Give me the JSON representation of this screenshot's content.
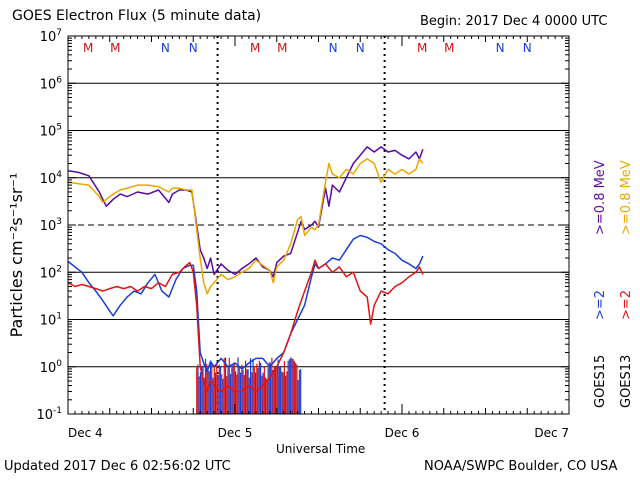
{
  "header": {
    "title": "GOES Electron Flux (5 minute data)",
    "begin": "Begin: 2017 Dec 4 0000 UTC"
  },
  "footer": {
    "updated": "Updated 2017 Dec  6 02:56:02 UTC",
    "credit": "NOAA/SWPC Boulder, CO USA"
  },
  "colors": {
    "goes15_2mev": "#1a3fd6",
    "goes13_2mev": "#e01414",
    "goes15_08mev": "#5a0aa0",
    "goes13_08mev": "#e8a800",
    "marker_m": "#c81414",
    "marker_n": "#1a3fd6"
  },
  "chart_data": {
    "type": "line",
    "ylabel": "Particles cm⁻²s⁻¹sr⁻¹",
    "xlabel": "Universal Time",
    "yscale": "log",
    "ylim": [
      0.1,
      10000000
    ],
    "xlim": [
      0,
      72
    ],
    "x_unit": "hours since 2017 Dec 4 0000 UTC",
    "x_ticks": [
      {
        "x": 0,
        "label": "Dec 4"
      },
      {
        "x": 24,
        "label": "Dec 5"
      },
      {
        "x": 48,
        "label": "Dec 6"
      },
      {
        "x": 72,
        "label": "Dec 7"
      }
    ],
    "y_ticks": [
      {
        "exp": 7,
        "value": 10000000
      },
      {
        "exp": 6,
        "value": 1000000
      },
      {
        "exp": 5,
        "value": 100000
      },
      {
        "exp": 4,
        "value": 10000
      },
      {
        "exp": 3,
        "value": 1000
      },
      {
        "exp": 2,
        "value": 100
      },
      {
        "exp": 1,
        "value": 10
      },
      {
        "exp": 0,
        "value": 1
      },
      {
        "exp": -1,
        "value": 0.1
      }
    ],
    "threshold_line": 1000,
    "local_midnight_lines": [
      21.5,
      45.5
    ],
    "top_markers": [
      {
        "x": 2.9,
        "label": "M",
        "color_key": "marker_m"
      },
      {
        "x": 6.8,
        "label": "M",
        "color_key": "marker_m"
      },
      {
        "x": 14.0,
        "label": "N",
        "color_key": "marker_n"
      },
      {
        "x": 18.0,
        "label": "N",
        "color_key": "marker_n"
      },
      {
        "x": 26.9,
        "label": "M",
        "color_key": "marker_m"
      },
      {
        "x": 30.8,
        "label": "M",
        "color_key": "marker_m"
      },
      {
        "x": 38.1,
        "label": "N",
        "color_key": "marker_n"
      },
      {
        "x": 42.0,
        "label": "N",
        "color_key": "marker_n"
      },
      {
        "x": 50.9,
        "label": "M",
        "color_key": "marker_m"
      },
      {
        "x": 54.8,
        "label": "M",
        "color_key": "marker_m"
      },
      {
        "x": 62.1,
        "label": "N",
        "color_key": "marker_n"
      },
      {
        "x": 66.0,
        "label": "N",
        "color_key": "marker_n"
      }
    ],
    "legend": [
      {
        "text": "GOES15",
        "color": "#000000"
      },
      {
        "text": ">=2",
        "color": "#1a3fd6"
      },
      {
        "text": ">=0.8 MeV",
        "color": "#5a0aa0"
      },
      {
        "text": "GOES13",
        "color": "#000000"
      },
      {
        "text": ">=2",
        "color": "#e01414"
      },
      {
        "text": ">=0.8 MeV",
        "color": "#e8a800"
      }
    ],
    "series": [
      {
        "name": "GOES15 >=0.8 MeV",
        "color_key": "goes15_08mev",
        "points": [
          [
            0,
            14000
          ],
          [
            1.5,
            13000
          ],
          [
            3,
            11000
          ],
          [
            4.5,
            5000
          ],
          [
            5,
            3500
          ],
          [
            5.5,
            2500
          ],
          [
            6.5,
            3500
          ],
          [
            7.5,
            4500
          ],
          [
            8.5,
            4000
          ],
          [
            10,
            5000
          ],
          [
            11.5,
            4500
          ],
          [
            13,
            5500
          ],
          [
            14.5,
            3000
          ],
          [
            15,
            4500
          ],
          [
            16,
            5500
          ],
          [
            17,
            5500
          ],
          [
            17.8,
            5000
          ],
          [
            18.5,
            1000
          ],
          [
            19,
            300
          ],
          [
            19.5,
            200
          ],
          [
            20,
            120
          ],
          [
            20.5,
            200
          ],
          [
            21,
            90
          ],
          [
            22,
            150
          ],
          [
            23,
            110
          ],
          [
            24,
            90
          ],
          [
            25,
            120
          ],
          [
            26,
            150
          ],
          [
            27,
            200
          ],
          [
            28,
            130
          ],
          [
            29,
            110
          ],
          [
            29.5,
            80
          ],
          [
            30,
            160
          ],
          [
            31,
            220
          ],
          [
            32,
            250
          ],
          [
            33,
            700
          ],
          [
            33.5,
            1200
          ],
          [
            34,
            800
          ],
          [
            35,
            1000
          ],
          [
            35.5,
            1200
          ],
          [
            36,
            900
          ],
          [
            37,
            6000
          ],
          [
            37.5,
            2500
          ],
          [
            38,
            7000
          ],
          [
            39,
            5000
          ],
          [
            40,
            10000
          ],
          [
            41,
            20000
          ],
          [
            42,
            30000
          ],
          [
            43,
            45000
          ],
          [
            44,
            35000
          ],
          [
            45,
            45000
          ],
          [
            46,
            35000
          ],
          [
            47,
            38000
          ],
          [
            48,
            30000
          ],
          [
            49,
            25000
          ],
          [
            50,
            35000
          ],
          [
            50.5,
            25000
          ],
          [
            51,
            40000
          ]
        ]
      },
      {
        "name": "GOES13 >=0.8 MeV",
        "color_key": "goes13_08mev",
        "points": [
          [
            0,
            8000
          ],
          [
            1.5,
            7500
          ],
          [
            3,
            7000
          ],
          [
            4.5,
            4000
          ],
          [
            5,
            3000
          ],
          [
            5.5,
            3500
          ],
          [
            6.5,
            4500
          ],
          [
            7.5,
            5500
          ],
          [
            8.5,
            6000
          ],
          [
            10,
            7000
          ],
          [
            11.5,
            7000
          ],
          [
            13,
            6500
          ],
          [
            14.5,
            5000
          ],
          [
            15,
            6000
          ],
          [
            16,
            6000
          ],
          [
            17,
            5500
          ],
          [
            17.8,
            5500
          ],
          [
            18.5,
            800
          ],
          [
            19,
            200
          ],
          [
            19.5,
            60
          ],
          [
            20,
            35
          ],
          [
            20.5,
            50
          ],
          [
            21,
            60
          ],
          [
            22,
            90
          ],
          [
            23,
            70
          ],
          [
            24,
            80
          ],
          [
            25,
            100
          ],
          [
            26,
            120
          ],
          [
            27,
            180
          ],
          [
            28,
            140
          ],
          [
            29,
            110
          ],
          [
            29.5,
            60
          ],
          [
            30,
            130
          ],
          [
            31,
            180
          ],
          [
            32,
            400
          ],
          [
            33,
            1300
          ],
          [
            33.5,
            1500
          ],
          [
            34,
            600
          ],
          [
            35,
            900
          ],
          [
            35.5,
            800
          ],
          [
            36,
            1000
          ],
          [
            37,
            8000
          ],
          [
            37.5,
            20000
          ],
          [
            38,
            12000
          ],
          [
            39,
            10000
          ],
          [
            40,
            15000
          ],
          [
            41,
            12000
          ],
          [
            42,
            20000
          ],
          [
            43,
            25000
          ],
          [
            44,
            20000
          ],
          [
            45,
            8000
          ],
          [
            46,
            15000
          ],
          [
            47,
            12000
          ],
          [
            48,
            15000
          ],
          [
            49,
            12000
          ],
          [
            50,
            15000
          ],
          [
            50.5,
            25000
          ],
          [
            51,
            20000
          ]
        ]
      },
      {
        "name": "GOES15 >=2 MeV",
        "color_key": "goes15_2mev",
        "points": [
          [
            0,
            170
          ],
          [
            1,
            130
          ],
          [
            2,
            100
          ],
          [
            3,
            60
          ],
          [
            4,
            40
          ],
          [
            5,
            25
          ],
          [
            6,
            15
          ],
          [
            6.5,
            12
          ],
          [
            7.5,
            20
          ],
          [
            8.5,
            30
          ],
          [
            9.5,
            40
          ],
          [
            10.5,
            35
          ],
          [
            11.5,
            60
          ],
          [
            12.5,
            90
          ],
          [
            13.5,
            40
          ],
          [
            14.5,
            30
          ],
          [
            15.5,
            70
          ],
          [
            16.5,
            120
          ],
          [
            17.5,
            140
          ],
          [
            18,
            140
          ],
          [
            18.5,
            40
          ],
          [
            19,
            2
          ],
          [
            19.5,
            1.2
          ],
          [
            20,
            0.8
          ],
          [
            20.5,
            1.3
          ],
          [
            21,
            1
          ],
          [
            22,
            1.5
          ],
          [
            23,
            1
          ],
          [
            24,
            1.2
          ],
          [
            25,
            0.9
          ],
          [
            26,
            1.2
          ],
          [
            27,
            1.5
          ],
          [
            28,
            1.5
          ],
          [
            29,
            1
          ],
          [
            30,
            1.5
          ],
          [
            31,
            2
          ],
          [
            32,
            5
          ],
          [
            33,
            10
          ],
          [
            34,
            20
          ],
          [
            35,
            80
          ],
          [
            35.5,
            150
          ],
          [
            36,
            120
          ],
          [
            37,
            150
          ],
          [
            38,
            200
          ],
          [
            39,
            180
          ],
          [
            40,
            300
          ],
          [
            41,
            500
          ],
          [
            42,
            600
          ],
          [
            43,
            550
          ],
          [
            44,
            450
          ],
          [
            45,
            400
          ],
          [
            46,
            300
          ],
          [
            47,
            250
          ],
          [
            48,
            180
          ],
          [
            49,
            150
          ],
          [
            50,
            120
          ],
          [
            50.5,
            150
          ],
          [
            51,
            220
          ]
        ]
      },
      {
        "name": "GOES13 >=2 MeV",
        "color_key": "goes13_2mev",
        "points": [
          [
            0,
            60
          ],
          [
            1,
            50
          ],
          [
            2,
            55
          ],
          [
            3,
            50
          ],
          [
            4,
            45
          ],
          [
            5,
            40
          ],
          [
            6,
            45
          ],
          [
            7,
            50
          ],
          [
            8,
            45
          ],
          [
            9,
            50
          ],
          [
            10,
            40
          ],
          [
            11,
            50
          ],
          [
            12,
            45
          ],
          [
            13,
            60
          ],
          [
            14,
            50
          ],
          [
            15,
            90
          ],
          [
            16,
            100
          ],
          [
            17,
            140
          ],
          [
            17.5,
            160
          ],
          [
            18,
            100
          ],
          [
            18.5,
            20
          ],
          [
            19,
            1
          ],
          [
            19.5,
            0.5
          ],
          [
            20,
            0.3
          ],
          [
            20.5,
            0.5
          ],
          [
            21,
            0.4
          ],
          [
            22,
            0.3
          ],
          [
            23,
            0.4
          ],
          [
            24,
            0.3
          ],
          [
            25,
            0.3
          ],
          [
            26,
            0.4
          ],
          [
            27,
            0.3
          ],
          [
            28,
            0.4
          ],
          [
            29,
            0.6
          ],
          [
            30,
            1
          ],
          [
            31,
            2
          ],
          [
            32,
            5
          ],
          [
            33,
            15
          ],
          [
            34,
            40
          ],
          [
            35,
            100
          ],
          [
            35.5,
            180
          ],
          [
            36,
            120
          ],
          [
            37,
            150
          ],
          [
            38,
            100
          ],
          [
            39,
            130
          ],
          [
            40,
            80
          ],
          [
            41,
            100
          ],
          [
            42,
            40
          ],
          [
            43,
            30
          ],
          [
            43.5,
            8
          ],
          [
            44,
            20
          ],
          [
            45,
            40
          ],
          [
            46,
            35
          ],
          [
            47,
            50
          ],
          [
            48,
            60
          ],
          [
            49,
            80
          ],
          [
            50,
            100
          ],
          [
            50.5,
            130
          ],
          [
            51,
            90
          ]
        ]
      }
    ],
    "dropout_spikes": {
      "x_start": 18.5,
      "x_end": 33.6,
      "floor": 0.1,
      "step_hours": 0.18,
      "ceiling_range": [
        0.5,
        1.6
      ],
      "colors": [
        "goes13_2mev",
        "goes15_2mev"
      ]
    }
  }
}
